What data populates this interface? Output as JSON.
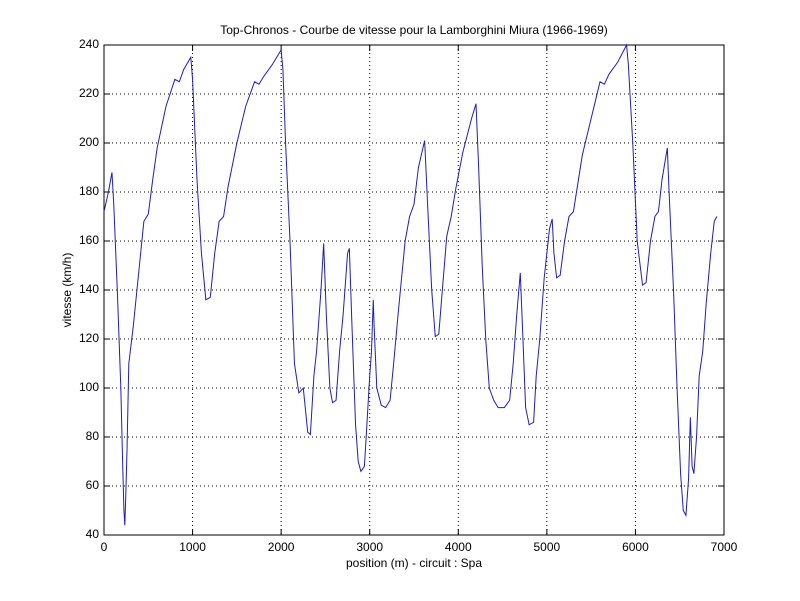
{
  "chart_data": {
    "type": "line",
    "title": "Top-Chronos - Courbe de vitesse pour la Lamborghini Miura (1966-1969)",
    "x_label": "position (m) - circuit : Spa",
    "y_label": "vitesse (km/h)",
    "xlim": [
      0,
      7000
    ],
    "xticks": [
      0,
      1000,
      2000,
      3000,
      4000,
      5000,
      6000,
      7000
    ],
    "ylim": [
      40,
      240
    ],
    "yticks": [
      40,
      60,
      80,
      100,
      120,
      140,
      160,
      180,
      200,
      220,
      240
    ],
    "grid": true,
    "series": [
      {
        "color": "#1f1fb4",
        "x": [
          0,
          50,
          90,
          110,
          150,
          190,
          210,
          225,
          235,
          245,
          260,
          280,
          330,
          400,
          450,
          500,
          550,
          600,
          700,
          800,
          850,
          900,
          980,
          1000,
          1050,
          1100,
          1150,
          1200,
          1250,
          1300,
          1350,
          1400,
          1500,
          1600,
          1700,
          1750,
          1800,
          1900,
          2000,
          2020,
          2050,
          2100,
          2150,
          2200,
          2250,
          2300,
          2330,
          2370,
          2400,
          2450,
          2480,
          2510,
          2550,
          2580,
          2620,
          2660,
          2700,
          2750,
          2770,
          2800,
          2840,
          2870,
          2900,
          2940,
          2960,
          3000,
          3020,
          3040,
          3050,
          3080,
          3130,
          3180,
          3230,
          3270,
          3320,
          3400,
          3450,
          3500,
          3550,
          3620,
          3660,
          3700,
          3740,
          3780,
          3820,
          3870,
          3920,
          3970,
          4050,
          4150,
          4200,
          4230,
          4270,
          4310,
          4350,
          4400,
          4450,
          4520,
          4580,
          4620,
          4660,
          4700,
          4730,
          4760,
          4800,
          4850,
          4880,
          4920,
          4970,
          5030,
          5060,
          5080,
          5110,
          5150,
          5200,
          5250,
          5300,
          5400,
          5500,
          5600,
          5650,
          5700,
          5800,
          5900,
          5920,
          5970,
          6020,
          6080,
          6120,
          6170,
          6220,
          6260,
          6300,
          6360,
          6380,
          6430,
          6470,
          6510,
          6540,
          6570,
          6600,
          6620,
          6640,
          6660,
          6690,
          6720,
          6760,
          6800,
          6850,
          6890,
          6920
        ],
        "values": [
          172,
          180,
          188,
          175,
          140,
          100,
          70,
          50,
          44,
          55,
          75,
          110,
          125,
          150,
          168,
          171,
          185,
          198,
          215,
          226,
          225,
          230,
          235,
          226,
          185,
          155,
          136,
          137,
          155,
          168,
          170,
          182,
          200,
          215,
          225,
          224,
          227,
          232,
          238,
          230,
          200,
          160,
          110,
          98,
          100,
          82,
          81,
          105,
          115,
          140,
          159,
          130,
          100,
          94,
          95,
          115,
          130,
          155,
          157,
          125,
          85,
          70,
          66,
          68,
          80,
          105,
          115,
          136,
          125,
          100,
          93,
          92,
          95,
          110,
          130,
          160,
          170,
          175,
          190,
          201,
          170,
          140,
          121,
          122,
          140,
          162,
          170,
          181,
          196,
          210,
          216,
          190,
          150,
          120,
          100,
          95,
          92,
          92,
          95,
          110,
          130,
          147,
          120,
          92,
          85,
          86,
          105,
          120,
          145,
          165,
          169,
          155,
          145,
          146,
          160,
          170,
          172,
          195,
          210,
          225,
          224,
          228,
          233,
          240,
          232,
          200,
          160,
          142,
          143,
          160,
          170,
          172,
          185,
          198,
          180,
          140,
          100,
          65,
          50,
          48,
          63,
          88,
          68,
          65,
          80,
          105,
          115,
          135,
          155,
          168,
          170
        ]
      }
    ]
  }
}
